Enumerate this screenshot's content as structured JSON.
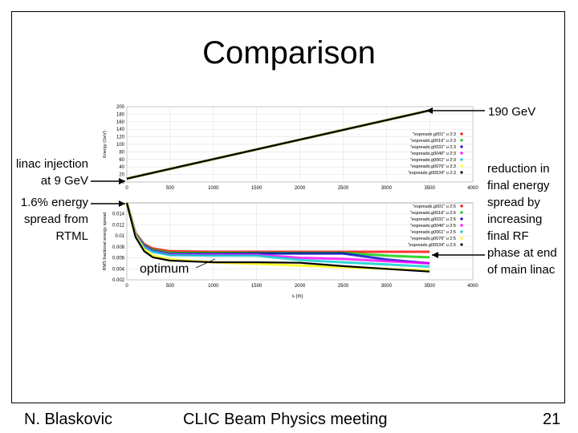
{
  "slide": {
    "title": "Comparison",
    "footer_left": "N. Blaskovic",
    "footer_center": "CLIC Beam Physics meeting",
    "page_number": "21"
  },
  "annotations": {
    "top_right": "190 GeV",
    "left_injection": [
      "linac injection",
      "at 9 GeV"
    ],
    "left_spread": [
      "1.6% energy",
      "spread from",
      "RTML"
    ],
    "right_reduction": [
      "reduction in",
      "final energy",
      "spread by",
      "increasing",
      "final RF",
      "phase at end",
      "of main linac"
    ],
    "optimum": "optimum"
  },
  "colors": {
    "black": "#000000",
    "red": "#ff0000",
    "green": "#00cc00",
    "blue": "#0000cc",
    "magenta": "#ff00ff",
    "cyan": "#00cccc",
    "yellow": "#ffff00"
  },
  "chart_data": [
    {
      "type": "line",
      "title": "",
      "xlabel": "",
      "ylabel": "Energy (GeV)",
      "xlim": [
        0,
        4000
      ],
      "ylim": [
        0,
        200
      ],
      "xticks": [
        0,
        500,
        1000,
        1500,
        2000,
        2500,
        3000,
        3500,
        4000
      ],
      "yticks": [
        0,
        20,
        40,
        60,
        80,
        100,
        120,
        140,
        160,
        180,
        200
      ],
      "legend_position": "right",
      "series": [
        {
          "name": "\"espreadx.g001\" u 2:3",
          "color": "#ff0000",
          "x": [
            0,
            3500
          ],
          "y": [
            9,
            190
          ]
        },
        {
          "name": "\"espreadx.g0016\" u 2:3",
          "color": "#00cc00",
          "x": [
            0,
            3500
          ],
          "y": [
            9,
            190
          ]
        },
        {
          "name": "\"espreadx.g0031\" u 2:3",
          "color": "#0000cc",
          "x": [
            0,
            3500
          ],
          "y": [
            9,
            190
          ]
        },
        {
          "name": "\"espreadx.g0046\" u 2:3",
          "color": "#ff00ff",
          "x": [
            0,
            3500
          ],
          "y": [
            9,
            190
          ]
        },
        {
          "name": "\"espreadx.g0061\" u 2:3",
          "color": "#00cccc",
          "x": [
            0,
            3500
          ],
          "y": [
            9,
            190
          ]
        },
        {
          "name": "\"espreadx.g0076\" u 2:3",
          "color": "#ffff00",
          "x": [
            0,
            3500
          ],
          "y": [
            9,
            190
          ]
        },
        {
          "name": "\"espreadx.g00534\" u 2:3",
          "color": "#000000",
          "x": [
            0,
            3500
          ],
          "y": [
            9,
            190
          ]
        }
      ]
    },
    {
      "type": "line",
      "title": "",
      "xlabel": "s (m)",
      "ylabel": "RMS fractional energy spread",
      "xlim": [
        0,
        4000
      ],
      "ylim": [
        0.002,
        0.016
      ],
      "xticks": [
        0,
        500,
        1000,
        1500,
        2000,
        2500,
        3000,
        3500,
        4000
      ],
      "yticks": [
        0.002,
        0.004,
        0.006,
        0.008,
        0.01,
        0.012,
        0.014
      ],
      "ytick_labels": [
        "0.002",
        "0.004",
        "0.006",
        "0.008",
        "0.01",
        "0.012",
        "0.014"
      ],
      "legend_position": "top-right",
      "series": [
        {
          "name": "\"espreadx.g001\" u 2:5",
          "color": "#ff0000",
          "x": [
            0,
            100,
            200,
            300,
            500,
            1000,
            1500,
            2000,
            2500,
            3000,
            3500
          ],
          "y": [
            0.016,
            0.0105,
            0.0085,
            0.0077,
            0.0072,
            0.0071,
            0.0071,
            0.0071,
            0.0071,
            0.0071,
            0.0071
          ]
        },
        {
          "name": "\"espreadx.g0016\" u 2:5",
          "color": "#00cc00",
          "x": [
            0,
            100,
            200,
            300,
            500,
            1000,
            1500,
            2000,
            2500,
            3000,
            3500
          ],
          "y": [
            0.016,
            0.0104,
            0.0083,
            0.0075,
            0.0069,
            0.0069,
            0.0069,
            0.0069,
            0.0069,
            0.0064,
            0.0061
          ]
        },
        {
          "name": "\"espreadx.g0031\" u 2:5",
          "color": "#0000cc",
          "x": [
            0,
            100,
            200,
            300,
            500,
            1000,
            1500,
            2000,
            2500,
            3000,
            3500
          ],
          "y": [
            0.016,
            0.0103,
            0.0082,
            0.0073,
            0.0067,
            0.0067,
            0.0068,
            0.0068,
            0.0068,
            0.0057,
            0.005
          ]
        },
        {
          "name": "\"espreadx.g0046\" u 2:5",
          "color": "#ff00ff",
          "x": [
            0,
            100,
            200,
            300,
            500,
            1000,
            1500,
            2000,
            2500,
            3000,
            3500
          ],
          "y": [
            0.016,
            0.0103,
            0.0081,
            0.0072,
            0.0066,
            0.0066,
            0.0066,
            0.006,
            0.0058,
            0.0054,
            0.005
          ]
        },
        {
          "name": "\"espreadx.g0061\" u 2:5",
          "color": "#00cccc",
          "x": [
            0,
            100,
            200,
            300,
            500,
            1000,
            1500,
            2000,
            2500,
            3000,
            3500
          ],
          "y": [
            0.016,
            0.0102,
            0.008,
            0.0071,
            0.0065,
            0.0064,
            0.0064,
            0.0056,
            0.0052,
            0.0048,
            0.0044
          ]
        },
        {
          "name": "\"espreadx.g0076\" u 2:5",
          "color": "#ffff00",
          "x": [
            0,
            100,
            200,
            300,
            500,
            1000,
            1500,
            2000,
            2500,
            3000,
            3500
          ],
          "y": [
            0.016,
            0.01,
            0.0075,
            0.0064,
            0.0057,
            0.0052,
            0.0049,
            0.0046,
            0.0043,
            0.004,
            0.0037
          ]
        },
        {
          "name": "\"espreadx.g00534\" u 2:5",
          "color": "#000000",
          "x": [
            0,
            100,
            200,
            300,
            500,
            1000,
            1500,
            2000,
            2500,
            3000,
            3500
          ],
          "y": [
            0.016,
            0.0098,
            0.0072,
            0.0061,
            0.0055,
            0.0052,
            0.0052,
            0.0051,
            0.0045,
            0.004,
            0.0035
          ]
        }
      ]
    }
  ]
}
